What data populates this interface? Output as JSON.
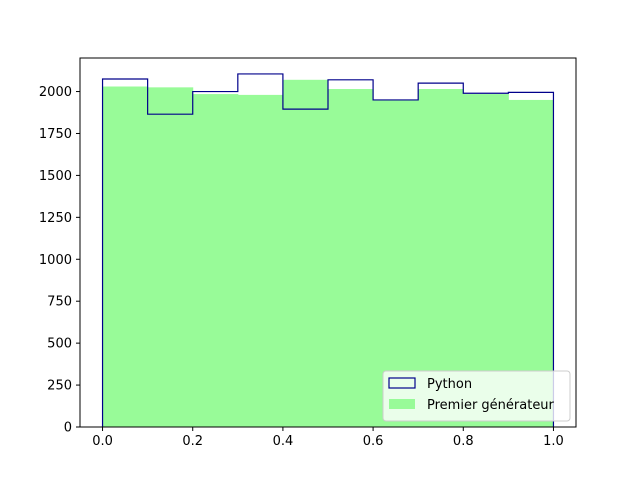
{
  "chart_data": {
    "type": "bar",
    "bin_edges": [
      0.0,
      0.1,
      0.2,
      0.3,
      0.4,
      0.5,
      0.6,
      0.7,
      0.8,
      0.9,
      1.0
    ],
    "series": [
      {
        "name": "Python",
        "style": "step",
        "color": "#00008b",
        "values": [
          2075,
          1865,
          2000,
          2105,
          1895,
          2070,
          1950,
          2050,
          1990,
          1995
        ]
      },
      {
        "name": "Premier générateur",
        "style": "filled",
        "color": "#98fb98",
        "values": [
          2030,
          2025,
          1985,
          1980,
          2070,
          2015,
          1950,
          2015,
          1985,
          1950
        ]
      }
    ],
    "xlim": [
      -0.05,
      1.05
    ],
    "ylim": [
      0,
      2200
    ],
    "xticks": [
      0.0,
      0.2,
      0.4,
      0.6,
      0.8,
      1.0
    ],
    "xtick_labels": [
      "0.0",
      "0.2",
      "0.4",
      "0.6",
      "0.8",
      "1.0"
    ],
    "yticks": [
      0,
      250,
      500,
      750,
      1000,
      1250,
      1500,
      1750,
      2000
    ],
    "ytick_labels": [
      "0",
      "250",
      "500",
      "750",
      "1000",
      "1250",
      "1500",
      "1750",
      "2000"
    ],
    "legend": {
      "placement": "lower-right",
      "entries": [
        "Python",
        "Premier générateur"
      ]
    },
    "grid": false
  }
}
